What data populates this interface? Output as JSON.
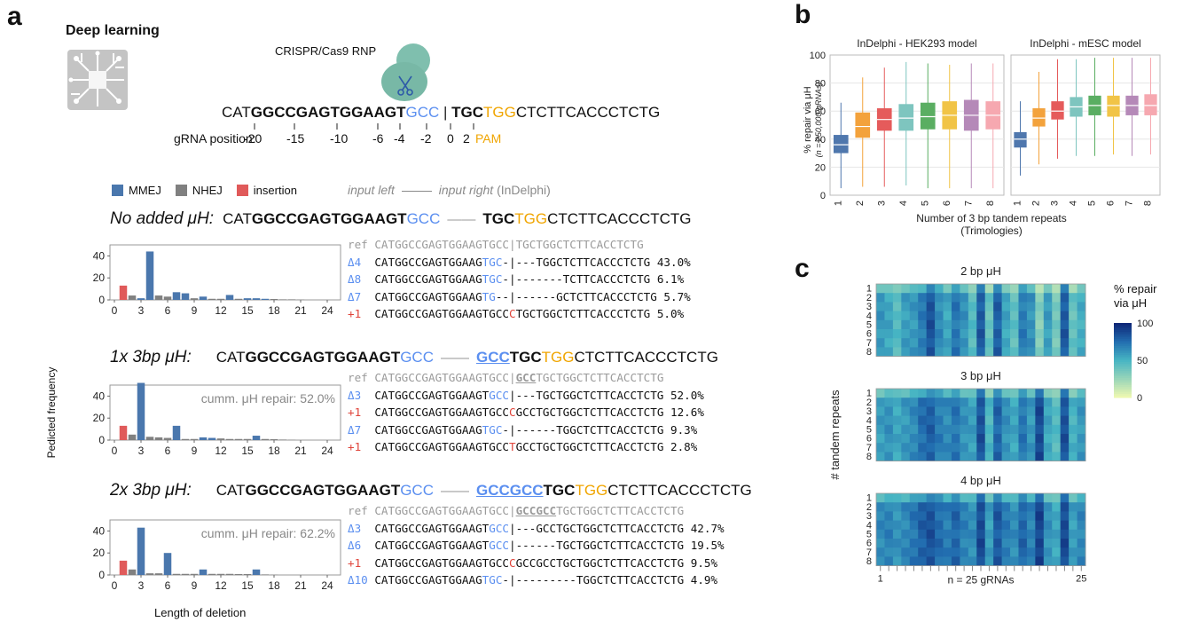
{
  "panels": {
    "a": "a",
    "b": "b",
    "c": "c"
  },
  "a": {
    "deep_learning": "Deep learning",
    "crispr_label": "CRISPR/Cas9 RNP",
    "top_seq": {
      "p1": "CAT",
      "p2": "GGCCGAGTGGAAGT",
      "p3": "GCC",
      "p4": "TGC",
      "p5": "TGG",
      "p6": "CTCTTCACCCTCTG"
    },
    "gRNA_label": "gRNA position:",
    "positions": [
      "-20",
      "-15",
      "-10",
      "-6",
      "-4",
      "-2",
      "0",
      "2"
    ],
    "pam": "PAM",
    "legend": [
      {
        "label": "MMEJ",
        "color": "#4a77ad"
      },
      {
        "label": "NHEJ",
        "color": "#808080"
      },
      {
        "label": "insertion",
        "color": "#e05a5a"
      }
    ],
    "input_left": "input left",
    "input_right": "input right",
    "indelphi": "(InDelphi)",
    "y_axis_label": "Pedicted frequency",
    "x_axis_label": "Length of deletion",
    "rows": [
      {
        "title": "No added μH:",
        "seq_left": {
          "a": "CAT",
          "b": "GGCCGAGTGGAAGT",
          "c": "GCC"
        },
        "dash": "——",
        "seq_right": {
          "a": "",
          "b": "TGC",
          "c": "TGG",
          "d": "CTCTTCACCCTCTG"
        },
        "cumm": "",
        "ref": {
          "label": "ref",
          "l": "CATGGCCGAGTGGAAGTGCC",
          "r": "TGCTGGCTCTTCACCTCTG",
          "u": ""
        },
        "alignments": [
          {
            "label": "Δ4",
            "kind": "del",
            "a": "CATGGCCGAGTGGAAG",
            "b": "TGC",
            "c": "-",
            "d": "|---TGGCTCTTCACCCTCTG",
            "pct": "43.0%"
          },
          {
            "label": "Δ8",
            "kind": "del",
            "a": "CATGGCCGAGTGGAAG",
            "b": "TGC",
            "c": "-",
            "d": "|-------TCTTCACCCTCTG",
            "pct": "6.1%"
          },
          {
            "label": "Δ7",
            "kind": "del",
            "a": "CATGGCCGAGTGGAAG",
            "b": "TG",
            "c": "--",
            "d": "|------GCTCTTCACCCTCTG",
            "pct": "5.7%"
          },
          {
            "label": "+1",
            "kind": "ins",
            "a": "CATGGCCGAGTGGAAGTGCC",
            "b": "C",
            "c": "",
            "d": "TGCTGGCTCTTCACCCTCTG",
            "pct": "5.0%"
          }
        ]
      },
      {
        "title": "1x 3bp μH:",
        "seq_left": {
          "a": "CAT",
          "b": "GGCCGAGTGGAAGT",
          "c": "GCC"
        },
        "dash": "——",
        "seq_right": {
          "a": "GCC",
          "b": "TGC",
          "c": "TGG",
          "d": "CTCTTCACCCTCTG"
        },
        "cumm": "cumm. μH repair: 52.0%",
        "ref": {
          "label": "ref",
          "l": "CATGGCCGAGTGGAAGTGCC",
          "r": "TGCTGGCTCTTCACCTCTG",
          "u": "GCC"
        },
        "alignments": [
          {
            "label": "Δ3",
            "kind": "del",
            "a": "CATGGCCGAGTGGAAGT",
            "b": "GCC",
            "c": "",
            "d": "|---TGCTGGCTCTTCACCTCTG",
            "pct": "52.0%"
          },
          {
            "label": "+1",
            "kind": "ins",
            "a": "CATGGCCGAGTGGAAGTGCC",
            "b": "C",
            "c": "",
            "d": "GCCTGCTGGCTCTTCACCTCTG",
            "pct": "12.6%"
          },
          {
            "label": "Δ7",
            "kind": "del",
            "a": "CATGGCCGAGTGGAAG",
            "b": "TGC",
            "c": "-",
            "d": "|------TGGCTCTTCACCTCTG",
            "pct": "9.3%"
          },
          {
            "label": "+1",
            "kind": "ins",
            "a": "CATGGCCGAGTGGAAGTGCC",
            "b": "T",
            "c": "",
            "d": "GCCTGCTGGCTCTTCACCTCTG",
            "pct": "2.8%"
          }
        ]
      },
      {
        "title": "2x 3bp μH:",
        "seq_left": {
          "a": "CAT",
          "b": "GGCCGAGTGGAAGT",
          "c": "GCC"
        },
        "dash": "——",
        "seq_right": {
          "a": "GCCGCC",
          "b": "TGC",
          "c": "TGG",
          "d": "CTCTTCACCCTCTG"
        },
        "cumm": "cumm. μH repair: 62.2%",
        "ref": {
          "label": "ref",
          "l": "CATGGCCGAGTGGAAGTGCC",
          "r": "TGCTGGCTCTTCACCTCTG",
          "u": "GCCGCC"
        },
        "alignments": [
          {
            "label": "Δ3",
            "kind": "del",
            "a": "CATGGCCGAGTGGAAGT",
            "b": "GCC",
            "c": "",
            "d": "|---GCCTGCTGGCTCTTCACCTCTG",
            "pct": "42.7%"
          },
          {
            "label": "Δ6",
            "kind": "del",
            "a": "CATGGCCGAGTGGAAGT",
            "b": "GCC",
            "c": "",
            "d": "|------TGCTGGCTCTTCACCTCTG",
            "pct": "19.5%"
          },
          {
            "label": "+1",
            "kind": "ins",
            "a": "CATGGCCGAGTGGAAGTGCC",
            "b": "C",
            "c": "",
            "d": "GCCGCCTGCTGGCTCTTCACCTCTG",
            "pct": "9.5%"
          },
          {
            "label": "Δ10",
            "kind": "del",
            "a": "CATGGCCGAGTGGAAG",
            "b": "TGC",
            "c": "-",
            "d": "|---------TGGCTCTTCACCTCTG",
            "pct": "4.9%"
          }
        ]
      }
    ]
  },
  "b": {
    "subplots": [
      "InDelphi - HEK293 model",
      "InDelphi - mESC model"
    ],
    "ylabel": "% repair via μH",
    "ylabel2": "(n = 250,000 gRNAs)",
    "xlabel": "Number of 3 bp tandem repeats",
    "xlabel2": "(Trimologies)"
  },
  "c": {
    "titles": [
      "2 bp μH",
      "3 bp μH",
      "4 bp μH"
    ],
    "ylabel": "# tandem repeats",
    "x_left": "1",
    "x_right": "25",
    "x_mid": "n = 25 gRNAs",
    "colorbar_title": "% repair via μH",
    "colorbar_ticks": [
      "100",
      "50",
      "0"
    ]
  },
  "chart_data": [
    {
      "type": "bar",
      "title": "No added μH",
      "xlabel": "Length of deletion",
      "ylabel": "Pedicted frequency",
      "ylim": [
        0,
        50
      ],
      "x_ticks": [
        "0",
        "3",
        "6",
        "9",
        "12",
        "15",
        "18",
        "21",
        "24"
      ],
      "series": [
        {
          "name": "MMEJ",
          "color": "#4a77ad",
          "x": [
            3,
            4,
            7,
            8,
            10,
            13,
            15,
            16,
            17
          ],
          "values": [
            1.5,
            44,
            7,
            6,
            3,
            4.5,
            1.5,
            1.5,
            1
          ]
        },
        {
          "name": "NHEJ",
          "color": "#808080",
          "x": [
            2,
            5,
            6,
            9,
            11,
            12,
            14,
            18,
            19,
            20,
            21
          ],
          "values": [
            4,
            4,
            3,
            1.5,
            1,
            1,
            1,
            0.8,
            0.5,
            0.5,
            0.3
          ]
        },
        {
          "name": "insertion",
          "color": "#e05a5a",
          "x": [
            1
          ],
          "values": [
            13
          ]
        }
      ]
    },
    {
      "type": "bar",
      "title": "1x 3bp μH",
      "xlabel": "Length of deletion",
      "ylabel": "Pedicted frequency",
      "ylim": [
        0,
        50
      ],
      "x_ticks": [
        "0",
        "3",
        "6",
        "9",
        "12",
        "15",
        "18",
        "21",
        "24"
      ],
      "series": [
        {
          "name": "MMEJ",
          "color": "#4a77ad",
          "x": [
            3,
            7,
            10,
            11,
            16
          ],
          "values": [
            52,
            13,
            2.5,
            2,
            4
          ]
        },
        {
          "name": "NHEJ",
          "color": "#808080",
          "x": [
            2,
            4,
            5,
            6,
            8,
            9,
            12,
            13,
            14,
            15,
            17,
            18,
            19,
            20
          ],
          "values": [
            5,
            3,
            2.5,
            2,
            1,
            1,
            1.5,
            1,
            1,
            1,
            1,
            0.8,
            0.5,
            0.3
          ]
        },
        {
          "name": "insertion",
          "color": "#e05a5a",
          "x": [
            1
          ],
          "values": [
            13
          ]
        }
      ]
    },
    {
      "type": "bar",
      "title": "2x 3bp μH",
      "xlabel": "Length of deletion",
      "ylabel": "Pedicted frequency",
      "ylim": [
        0,
        50
      ],
      "x_ticks": [
        "0",
        "3",
        "6",
        "9",
        "12",
        "15",
        "18",
        "21",
        "24"
      ],
      "series": [
        {
          "name": "MMEJ",
          "color": "#4a77ad",
          "x": [
            3,
            6,
            10,
            16
          ],
          "values": [
            43,
            20,
            5,
            5
          ]
        },
        {
          "name": "NHEJ",
          "color": "#808080",
          "x": [
            2,
            4,
            5,
            7,
            8,
            9,
            11,
            12,
            13,
            14,
            15,
            17,
            18
          ],
          "values": [
            5,
            1.5,
            1.5,
            1,
            1,
            1,
            1,
            1,
            1,
            0.8,
            0.8,
            0.5,
            0.3
          ]
        },
        {
          "name": "insertion",
          "color": "#e05a5a",
          "x": [
            1
          ],
          "values": [
            13
          ]
        }
      ]
    },
    {
      "type": "box",
      "title": "InDelphi - HEK293 model",
      "xlabel": "Number of 3 bp tandem repeats",
      "ylabel": "% repair via μH",
      "ylim": [
        0,
        100
      ],
      "categories": [
        "1",
        "2",
        "3",
        "4",
        "5",
        "6",
        "7",
        "8"
      ],
      "boxes": [
        [
          5,
          30,
          36,
          43,
          66
        ],
        [
          6,
          41,
          49,
          59,
          84
        ],
        [
          6,
          46,
          54,
          62,
          91
        ],
        [
          7,
          46,
          55,
          65,
          95
        ],
        [
          5,
          47,
          56,
          66,
          94
        ],
        [
          5,
          47,
          57,
          67,
          93
        ],
        [
          5,
          46,
          57,
          68,
          94
        ],
        [
          5,
          47,
          57,
          67,
          94
        ]
      ],
      "colors": [
        "#4f77ad",
        "#f3a23c",
        "#e55b5b",
        "#7ec5bf",
        "#5aae62",
        "#f1c447",
        "#b589b8",
        "#f6a8b0"
      ]
    },
    {
      "type": "box",
      "title": "InDelphi - mESC model",
      "xlabel": "Number of 3 bp tandem repeats",
      "ylabel": "% repair via μH",
      "ylim": [
        0,
        100
      ],
      "categories": [
        "1",
        "2",
        "3",
        "4",
        "5",
        "6",
        "7",
        "8"
      ],
      "boxes": [
        [
          14,
          34,
          40,
          45,
          67
        ],
        [
          22,
          49,
          55,
          62,
          88
        ],
        [
          26,
          54,
          60,
          67,
          97
        ],
        [
          28,
          56,
          63,
          70,
          97
        ],
        [
          28,
          57,
          64,
          71,
          98
        ],
        [
          29,
          56,
          64,
          71,
          98
        ],
        [
          28,
          57,
          64,
          71,
          98
        ],
        [
          29,
          57,
          64,
          72,
          98
        ]
      ],
      "colors": [
        "#4f77ad",
        "#f3a23c",
        "#e55b5b",
        "#7ec5bf",
        "#5aae62",
        "#f1c447",
        "#b589b8",
        "#f6a8b0"
      ]
    },
    {
      "type": "heatmap",
      "title": "2 bp μH",
      "ylabel": "# tandem repeats",
      "xlabel": "n = 25 gRNAs",
      "zlim": [
        0,
        100
      ],
      "rows": [
        "1",
        "2",
        "3",
        "4",
        "5",
        "6",
        "7",
        "8"
      ],
      "col_means": [
        60,
        55,
        45,
        58,
        60,
        70,
        85,
        65,
        55,
        72,
        62,
        45,
        82,
        40,
        80,
        55,
        42,
        70,
        62,
        30,
        58,
        35,
        82,
        40,
        52
      ]
    },
    {
      "type": "heatmap",
      "title": "3 bp μH",
      "ylabel": "# tandem repeats",
      "xlabel": "n = 25 gRNAs",
      "zlim": [
        0,
        100
      ],
      "rows": [
        "1",
        "2",
        "3",
        "4",
        "5",
        "6",
        "7",
        "8"
      ],
      "col_means": [
        58,
        62,
        55,
        60,
        65,
        75,
        80,
        70,
        65,
        72,
        62,
        58,
        85,
        48,
        78,
        62,
        55,
        72,
        60,
        88,
        55,
        45,
        85,
        50,
        60
      ]
    },
    {
      "type": "heatmap",
      "title": "4 bp μH",
      "ylabel": "# tandem repeats",
      "xlabel": "n = 25 gRNAs",
      "zlim": [
        0,
        100
      ],
      "rows": [
        "1",
        "2",
        "3",
        "4",
        "5",
        "6",
        "7",
        "8"
      ],
      "col_means": [
        65,
        68,
        62,
        66,
        72,
        80,
        85,
        76,
        70,
        78,
        68,
        64,
        88,
        58,
        82,
        70,
        64,
        78,
        68,
        90,
        62,
        55,
        88,
        58,
        66
      ]
    }
  ]
}
